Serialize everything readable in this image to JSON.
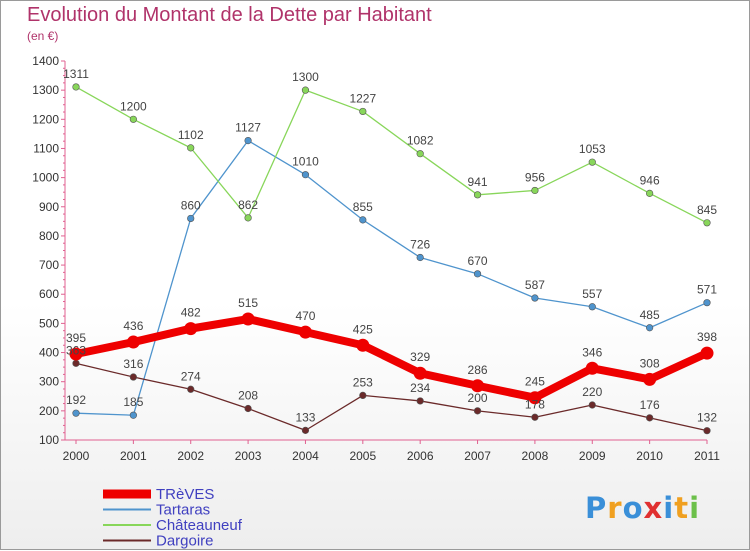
{
  "chart_data": {
    "type": "line",
    "title": "Evolution du Montant de la Dette par Habitant",
    "subtitle": "(en €)",
    "xlabel": "",
    "ylabel": "",
    "ylim": [
      100,
      1400
    ],
    "yticks": [
      100,
      200,
      300,
      400,
      500,
      600,
      700,
      800,
      900,
      1000,
      1100,
      1200,
      1300,
      1400
    ],
    "categories": [
      "2000",
      "2001",
      "2002",
      "2003",
      "2004",
      "2005",
      "2006",
      "2007",
      "2008",
      "2009",
      "2010",
      "2011"
    ],
    "grid": false,
    "legend_position": "bottom-left",
    "series": [
      {
        "name": "TRèVES",
        "color": "#ee0000",
        "highlight": true,
        "values": [
          395,
          436,
          482,
          515,
          470,
          425,
          329,
          286,
          245,
          346,
          308,
          398
        ]
      },
      {
        "name": "Tartaras",
        "color": "#4f94cd",
        "highlight": false,
        "values": [
          192,
          185,
          860,
          1127,
          1010,
          855,
          726,
          670,
          587,
          557,
          485,
          571
        ]
      },
      {
        "name": "Châteauneuf",
        "color": "#88d65a",
        "highlight": false,
        "values": [
          1311,
          1200,
          1102,
          862,
          1300,
          1227,
          1082,
          941,
          956,
          1053,
          946,
          845
        ]
      },
      {
        "name": "Dargoire",
        "color": "#6b2a2a",
        "highlight": false,
        "values": [
          363,
          316,
          274,
          208,
          133,
          253,
          234,
          200,
          178,
          220,
          176,
          132
        ]
      }
    ]
  },
  "logo": {
    "letters": [
      "P",
      "r",
      "o",
      "x",
      "i",
      "t",
      "i"
    ],
    "colors": [
      "#3a8fd8",
      "#f0a020",
      "#3a8fd8",
      "#e03030",
      "#3a8fd8",
      "#f0a020",
      "#6cc04a"
    ]
  }
}
